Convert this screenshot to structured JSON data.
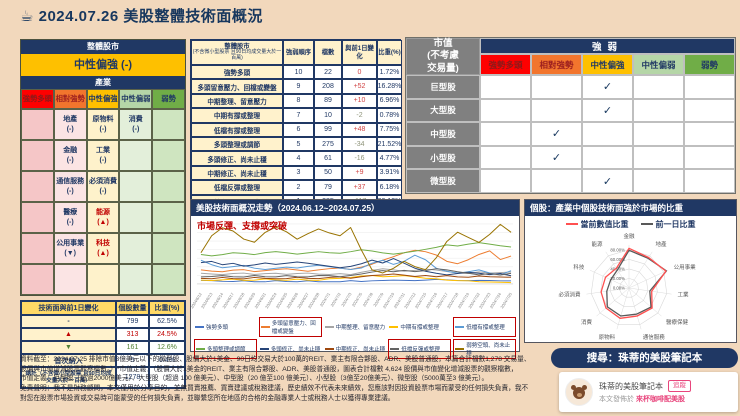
{
  "page": {
    "coffee_icon": "☕",
    "title": "2024.07.26 美股整體技術面概況",
    "background": "#F2D8BC",
    "accent_navy": "#203864"
  },
  "strength_levels": [
    {
      "label": "強勢多頭",
      "bg": "#FE0000",
      "fg": "#8B1A1A",
      "cell_bg": "#F5C6C7"
    },
    {
      "label": "相對強勢",
      "bg": "#F2752D",
      "fg": "#9C1F1F",
      "cell_bg": "#FBE4E4"
    },
    {
      "label": "中性偏強",
      "bg": "#FEC000",
      "fg": "#203864",
      "cell_bg": "#FEF2CB"
    },
    {
      "label": "中性偏弱",
      "bg": "#B5D6A7",
      "fg": "#203864",
      "cell_bg": "#E3EFDA"
    },
    {
      "label": "弱勢",
      "bg": "#70AD47",
      "fg": "#203864",
      "cell_bg": "#CFE5C0"
    }
  ],
  "industry_panel": {
    "title": "整體股市",
    "overall": "中性偏強 (-)",
    "subtitle": "產業",
    "rows": [
      [
        null,
        {
          "name": "地產",
          "change": "(-)"
        },
        {
          "name": "原物料",
          "change": "(-)"
        },
        {
          "name": "消費",
          "change": "(-)"
        },
        null
      ],
      [
        null,
        {
          "name": "金融",
          "change": "(-)"
        },
        {
          "name": "工業",
          "change": "(-)"
        },
        null,
        null
      ],
      [
        null,
        {
          "name": "通信服務",
          "change": "(-)"
        },
        {
          "name": "必須消費",
          "change": "(-)"
        },
        null,
        null
      ],
      [
        null,
        {
          "name": "醫療",
          "change": "(-)"
        },
        {
          "name": "能源",
          "change": "(▲)",
          "hot": true
        },
        null,
        null
      ],
      [
        null,
        {
          "name": "公用事業",
          "change": "(▼)"
        },
        {
          "name": "科技",
          "change": "(▲)",
          "hot": true
        },
        null,
        null
      ],
      [
        null,
        null,
        null,
        null,
        null
      ]
    ]
  },
  "rank_table": {
    "header": {
      "label_line1": "整體股市",
      "label_line2": "(不含微小型股票 且90日均成交量大於一百萬)",
      "order": "強弱順序",
      "count": "檔數",
      "change": "與前1日變化",
      "pct": "比重(%)"
    },
    "rows": [
      {
        "label": "強勢多頭",
        "order": "10",
        "count": "22",
        "change": "0",
        "pct": "1.72%"
      },
      {
        "label": "多頭留意壓力、回檔或變盤",
        "order": "9",
        "count": "208",
        "change": "+52",
        "pct": "16.28%"
      },
      {
        "label": "中期整理、留意壓力",
        "order": "8",
        "count": "89",
        "change": "+10",
        "pct": "6.96%"
      },
      {
        "label": "中期有撐或整理",
        "order": "7",
        "count": "10",
        "change": "-2",
        "pct": "0.78%"
      },
      {
        "label": "低檔有撐或整理",
        "order": "6",
        "count": "99",
        "change": "+48",
        "pct": "7.75%"
      },
      {
        "label": "多頭整理或調節",
        "order": "5",
        "count": "275",
        "change": "-34",
        "pct": "21.52%"
      },
      {
        "label": "多頭修正、尚未止穩",
        "order": "4",
        "count": "61",
        "change": "-16",
        "pct": "4.77%"
      },
      {
        "label": "中期修正、尚未止穩",
        "order": "3",
        "count": "50",
        "change": "+9",
        "pct": "3.91%"
      },
      {
        "label": "低檔反彈或整理",
        "order": "2",
        "count": "79",
        "change": "+37",
        "pct": "6.18%"
      },
      {
        "label": "弱勢空頭、尚未止穩",
        "order": "1",
        "count": "385",
        "change": "-117",
        "pct": "30.13%"
      }
    ],
    "total": {
      "label": "總計",
      "order": "",
      "count": "1278",
      "change": "-13",
      "pct": ""
    }
  },
  "cap_matrix": {
    "corner": "市值\n(不考慮\n交易量)",
    "group": "強弱",
    "check_mark": "✓",
    "rows": [
      {
        "label": "巨型股",
        "check_col": 2
      },
      {
        "label": "大型股",
        "check_col": 2
      },
      {
        "label": "中型股",
        "check_col": 1
      },
      {
        "label": "小型股",
        "check_col": 1
      },
      {
        "label": "微型股",
        "check_col": 2
      }
    ]
  },
  "change_table": {
    "headers": [
      "技術面與前1日變化",
      "個股數量",
      "比重(%)"
    ],
    "rows": [
      {
        "symbol": "-",
        "count": "799",
        "pct": "62.5%",
        "tone": "flat"
      },
      {
        "symbol": "▲",
        "count": "313",
        "pct": "24.5%",
        "tone": "up"
      },
      {
        "symbol": "▼",
        "count": "161",
        "pct": "12.6%",
        "tone": "down"
      },
      {
        "symbol": "首次納入",
        "count": "5",
        "pct": "0.4%",
        "tone": "flat"
      }
    ],
    "total": {
      "label": "總計（不含微小型股票 且90日均成交量大於一百萬）",
      "count": "1278",
      "pct": ""
    }
  },
  "chart_data": [
    {
      "id": "trend",
      "type": "line",
      "title": "美股技術面概況走勢（2024.06.12~2024.07.25）",
      "annotation": "市場反彈、支撐或突破",
      "unit": "%",
      "ylim": [
        0,
        36
      ],
      "x": [
        "2024/6/12",
        "2024/6/13",
        "2024/6/14",
        "2024/6/17",
        "2024/6/18",
        "2024/6/20",
        "2024/6/21",
        "2024/6/24",
        "2024/6/25",
        "2024/6/26",
        "2024/6/27",
        "2024/6/28",
        "2024/7/1",
        "2024/7/2",
        "2024/7/3",
        "2024/7/5",
        "2024/7/8",
        "2024/7/9",
        "2024/7/10",
        "2024/7/11",
        "2024/7/12",
        "2024/7/15",
        "2024/7/16",
        "2024/7/17",
        "2024/7/18",
        "2024/7/19",
        "2024/7/22",
        "2024/7/23",
        "2024/7/24",
        "2024/7/25"
      ],
      "legend_position": "bottom",
      "series": [
        {
          "name": "強勢多頭",
          "color": "#4472C4",
          "boxed": false,
          "values": [
            2.1,
            1.9,
            1.5,
            1.4,
            1.8,
            1.3,
            1.2,
            1.9,
            1.4,
            1.2,
            1.8,
            1.3,
            1.2,
            1.3,
            1.9,
            1.4,
            1.8,
            2.0,
            2.2,
            2.1,
            1.9,
            2.2,
            2.6,
            2.3,
            2.0,
            1.9,
            2.1,
            2.0,
            1.8,
            1.72
          ]
        },
        {
          "name": "多頭留意壓力、回檔或變盤",
          "color": "#ED7D31",
          "boxed": true,
          "values": [
            8.2,
            7.5,
            7.1,
            8.0,
            8.3,
            7.2,
            7.8,
            8.4,
            8.8,
            8.1,
            7.4,
            8.2,
            8.9,
            9.3,
            8.4,
            9.8,
            11.5,
            13.8,
            15.9,
            18.2,
            19.6,
            18.8,
            16.9,
            13.2,
            11.8,
            14.1,
            17.2,
            19.3,
            14.2,
            16.28
          ]
        },
        {
          "name": "中期整理、留意壓力",
          "color": "#A5A5A5",
          "boxed": false,
          "values": [
            6.2,
            5.8,
            5.4,
            6.1,
            6.3,
            5.5,
            6.0,
            6.2,
            5.6,
            6.1,
            6.3,
            5.7,
            5.5,
            6.0,
            5.4,
            6.8,
            7.9,
            8.8,
            8.2,
            7.4,
            7.9,
            8.6,
            8.1,
            7.2,
            6.4,
            6.1,
            7.0,
            6.3,
            6.6,
            6.96
          ]
        },
        {
          "name": "中期有撐或整理",
          "color": "#FFC000",
          "boxed": false,
          "values": [
            2.2,
            2.0,
            2.3,
            2.8,
            2.1,
            2.2,
            2.9,
            2.3,
            2.1,
            2.8,
            2.2,
            2.1,
            3.0,
            3.2,
            3.8,
            4.6,
            4.9,
            4.2,
            4.4,
            4.8,
            4.1,
            3.3,
            3.0,
            2.2,
            1.9,
            1.8,
            1.2,
            1.1,
            1.0,
            0.78
          ]
        },
        {
          "name": "低檔有撐或整理",
          "color": "#5B9BD5",
          "boxed": true,
          "values": [
            13.8,
            11.2,
            9.4,
            10.1,
            10.8,
            9.2,
            8.4,
            9.1,
            9.8,
            9.3,
            10.2,
            10.9,
            10.1,
            9.2,
            8.4,
            9.3,
            12.1,
            13.8,
            11.4,
            13.2,
            16.8,
            14.1,
            9.2,
            7.4,
            6.3,
            7.1,
            8.2,
            6.4,
            5.2,
            7.75
          ]
        },
        {
          "name": "多頭整理或調節",
          "color": "#70AD47",
          "boxed": true,
          "values": [
            17.2,
            16.4,
            17.1,
            18.2,
            17.8,
            17.1,
            18.3,
            18.9,
            18.2,
            17.4,
            18.1,
            18.8,
            18.2,
            17.9,
            18.8,
            19.9,
            19.2,
            18.1,
            17.4,
            18.2,
            19.1,
            20.2,
            21.3,
            22.8,
            22.1,
            23.2,
            24.1,
            23.2,
            22.3,
            21.52
          ]
        },
        {
          "name": "多頭修正、尚未止穩",
          "color": "#264478",
          "boxed": false,
          "values": [
            12.4,
            13.1,
            11.2,
            12.0,
            10.4,
            11.1,
            12.2,
            11.4,
            12.1,
            12.8,
            12.1,
            11.2,
            10.3,
            9.4,
            10.2,
            11.8,
            13.9,
            12.2,
            14.8,
            12.1,
            9.2,
            7.4,
            6.2,
            5.3,
            6.1,
            6.8,
            6.2,
            5.4,
            6.1,
            4.77
          ]
        },
        {
          "name": "中期修正、尚未止穩",
          "color": "#9E480E",
          "boxed": false,
          "values": [
            3.2,
            3.0,
            3.8,
            3.1,
            2.9,
            3.8,
            3.2,
            3.0,
            3.1,
            3.9,
            3.2,
            3.1,
            3.8,
            4.1,
            3.3,
            4.2,
            4.9,
            5.2,
            5.8,
            5.1,
            4.3,
            4.9,
            4.2,
            4.8,
            4.1,
            3.9,
            4.6,
            4.2,
            4.0,
            3.91
          ]
        },
        {
          "name": "低檔反彈或整理",
          "color": "#636363",
          "boxed": true,
          "values": [
            4.1,
            4.3,
            4.8,
            4.2,
            4.0,
            4.9,
            4.2,
            4.1,
            4.8,
            4.2,
            4.1,
            4.9,
            4.8,
            4.2,
            4.9,
            5.8,
            6.9,
            7.8,
            7.1,
            7.9,
            7.2,
            7.8,
            8.9,
            8.2,
            7.1,
            6.2,
            5.3,
            6.1,
            5.2,
            6.18
          ]
        },
        {
          "name": "弱勢空頭、尚未止穩",
          "color": "#997300",
          "boxed": true,
          "values": [
            18.2,
            28.1,
            32.8,
            30.9,
            26.2,
            24.3,
            30.1,
            33.2,
            30.4,
            26.1,
            29.3,
            32.1,
            29.8,
            28.1,
            32.9,
            19.8,
            8.2,
            6.4,
            9.1,
            13.2,
            10.1,
            8.3,
            15.2,
            24.8,
            30.2,
            27.1,
            24.2,
            28.9,
            34.8,
            30.13
          ]
        }
      ]
    },
    {
      "id": "radar",
      "type": "radar",
      "title": "個股：產業中個股技術面強於市場的比重",
      "categories": [
        "金融",
        "地產",
        "公用事業",
        "工業",
        "醫療保健",
        "通信服務",
        "原物料",
        "消費",
        "必須消費",
        "科技",
        "能源"
      ],
      "ring_labels": [
        "0.00%",
        "20.00%",
        "40.00%",
        "60.00%",
        "80.00%"
      ],
      "ring_values": [
        0,
        20,
        40,
        60,
        80
      ],
      "rmax": 90,
      "series": [
        {
          "name": "當前數值比重",
          "color": "#FF5050",
          "values": [
            83,
            76,
            85,
            48,
            64,
            61,
            66,
            64,
            59,
            54,
            49
          ]
        },
        {
          "name": "前一日比重",
          "color": "#595959",
          "values": [
            79,
            74,
            86,
            44,
            61,
            57,
            61,
            60,
            47,
            42,
            45
          ]
        }
      ]
    }
  ],
  "footnotes": [
    "資料截至：2024.07.25 排除市值3億美元以下的微型股、股價大於1美金、90日均交易大於100萬的REIT、業主有限合夥股、ADR、美股普通股，本篇合計檔數1,278 交易量、",
    "股價與市值增減股票觀察檔數。）*市值定義：（股價大於1美金的REIT、業主有限合夥股、ADR、美股普通股，圖表合計檔數 4,624 股價與市值變化增減股票的觀察檔數，",
    "市值定義：巨型股（超過2000億美元）、大型股（超過 100 億美元）、中型股（20 億至100 億美元）、小型股（3億至20億美元）、微型股（5000萬至3 億美元）。",
    "免責聲明：我不是財務顧問，本文僅用於分享目的，並無買賣推薦、買賣建議或稅務建議，歷史績效不代表未來績效，您應該對因投資股票市場而蒙受的任何損失負責，我不",
    "對您在股票市場投資或交易時可能蒙受的任何損失負責，並聯繫您所在地區的合格的金融專業人士或稅務人士以獲得專業建議。"
  ],
  "search": {
    "pill": "搜尋：珠蒂的美股筆記本"
  },
  "profile": {
    "name": "珠蒂的美股筆記本",
    "follow_label": "追蹤",
    "published_prefix": "本文發佈於 ",
    "published_link": "來杯咖啡配美股"
  }
}
